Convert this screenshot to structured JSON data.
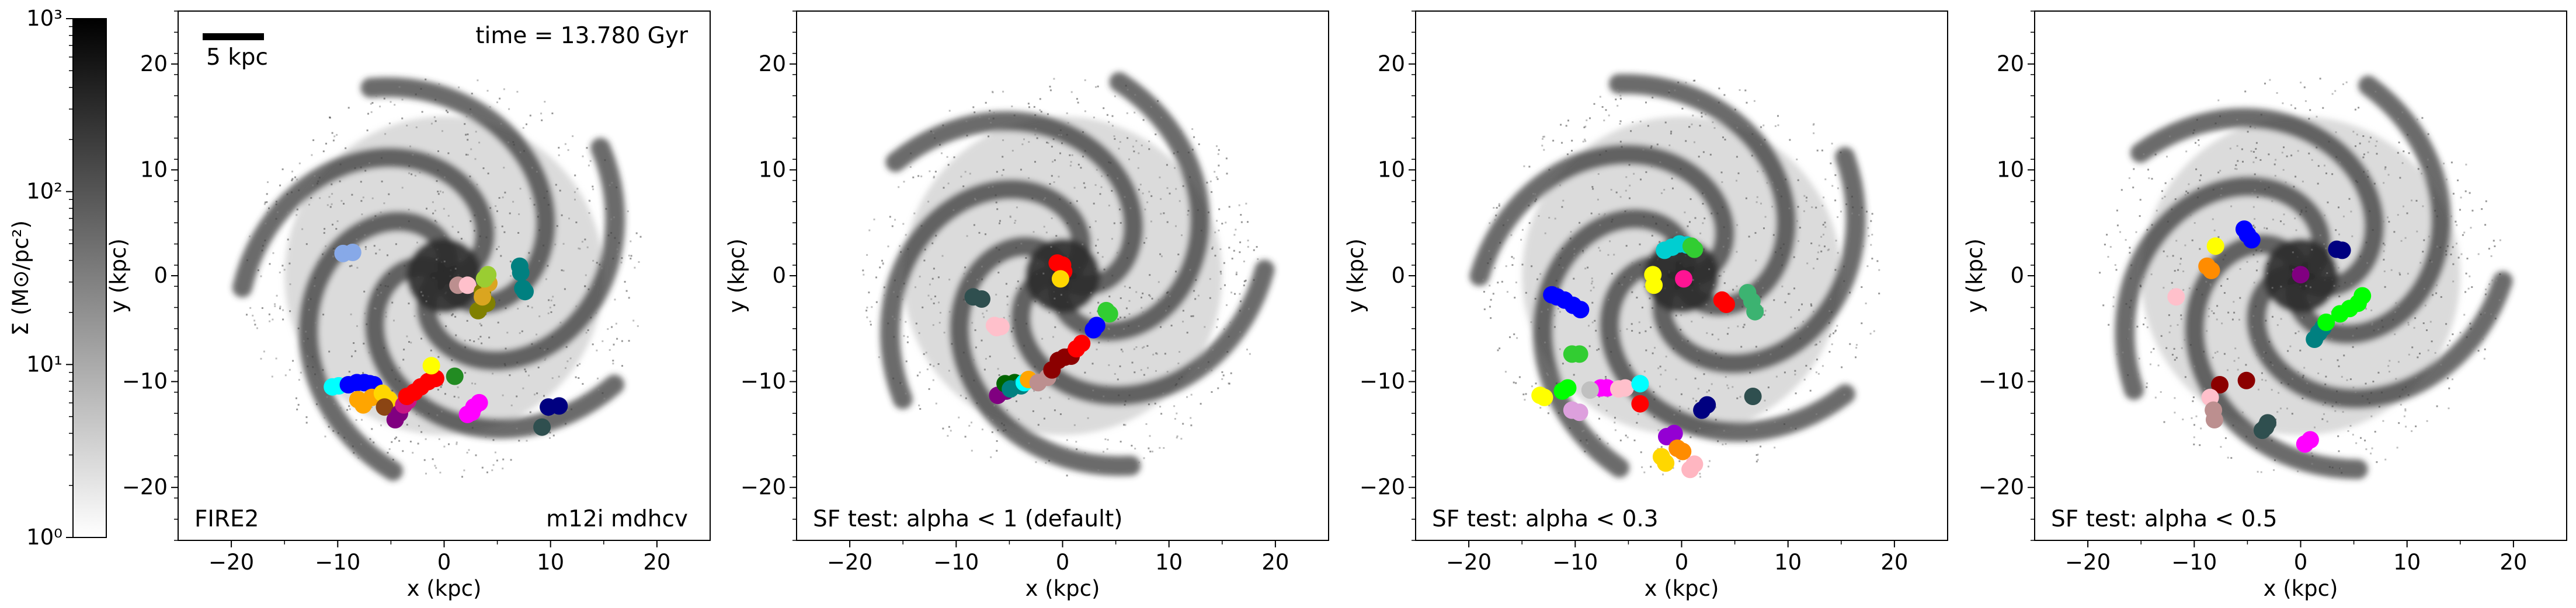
{
  "figure": {
    "time_label": "time = 13.780 Gyr",
    "scalebar_label": "5 kpc",
    "scalebar_length": 5,
    "colorbar": {
      "label": "Σ (M⊙/pc²)",
      "scale": "log",
      "range": [
        1,
        1000
      ],
      "tick_labels": [
        "10⁰",
        "10¹",
        "10²",
        "10³"
      ],
      "tick_values": [
        1,
        10,
        100,
        1000
      ],
      "colors": [
        "#ffffff",
        "#000000"
      ]
    }
  },
  "chart_data": [
    {
      "type": "scatter",
      "xlabel": "x (kpc)",
      "ylabel": "y (kpc)",
      "xlim": [
        -25,
        25
      ],
      "ylim": [
        -25,
        25
      ],
      "xticks": [
        -20,
        -10,
        0,
        10,
        20
      ],
      "yticks": [
        -20,
        -10,
        0,
        10,
        20
      ],
      "tick_labels_x": [
        "−20",
        "−10",
        "0",
        "10",
        "20"
      ],
      "tick_labels_y": [
        "−20",
        "−10",
        "0",
        "10",
        "20"
      ],
      "annotation_left": "FIRE2",
      "annotation_right": "m12i mdhcv",
      "background": "gas surface density map (spiral galaxy)",
      "grid": false,
      "clusters": [
        {
          "color": "#87a9e8",
          "points": [
            [
              -9.5,
              2.1
            ],
            [
              -8.6,
              2.2
            ]
          ]
        },
        {
          "color": "#00ffff",
          "points": [
            [
              -10.5,
              -10.5
            ],
            [
              -9.9,
              -10.4
            ]
          ]
        },
        {
          "color": "#0000ff",
          "points": [
            [
              -9,
              -10.3
            ],
            [
              -8.2,
              -10.1
            ],
            [
              -7.5,
              -10.1
            ],
            [
              -7,
              -10.2
            ],
            [
              -6.6,
              -10.3
            ]
          ]
        },
        {
          "color": "#ffa500",
          "points": [
            [
              -8.1,
              -11.7
            ],
            [
              -7.6,
              -12.2
            ],
            [
              -6.8,
              -11.5
            ]
          ]
        },
        {
          "color": "#ffd700",
          "points": [
            [
              -5.8,
              -11.1
            ],
            [
              -5.2,
              -11.7
            ]
          ]
        },
        {
          "color": "#8b4513",
          "points": [
            [
              -5.6,
              -12.4
            ]
          ]
        },
        {
          "color": "#800080",
          "points": [
            [
              -4.6,
              -13.6
            ],
            [
              -4.2,
              -13.0
            ]
          ]
        },
        {
          "color": "#c71585",
          "points": [
            [
              -3.8,
              -12.2
            ],
            [
              -3.4,
              -11.8
            ]
          ]
        },
        {
          "color": "#ff0000",
          "points": [
            [
              -3.5,
              -11.4
            ],
            [
              -2.8,
              -11.0
            ],
            [
              -2.2,
              -10.5
            ],
            [
              -1.5,
              -10.0
            ],
            [
              -0.8,
              -9.7
            ]
          ]
        },
        {
          "color": "#ffff00",
          "points": [
            [
              -1.2,
              -8.5
            ]
          ]
        },
        {
          "color": "#ff00ff",
          "points": [
            [
              2.2,
              -13.1
            ],
            [
              2.8,
              -12.4
            ],
            [
              3.3,
              -12.0
            ],
            [
              2.6,
              -12.9
            ]
          ]
        },
        {
          "color": "#228b22",
          "points": [
            [
              1,
              -9.5
            ]
          ]
        },
        {
          "color": "#000080",
          "points": [
            [
              9.8,
              -12.4
            ],
            [
              10.8,
              -12.3
            ]
          ]
        },
        {
          "color": "#2f4f4f",
          "points": [
            [
              9.2,
              -14.3
            ]
          ]
        },
        {
          "color": "#bc8f8f",
          "points": [
            [
              1.3,
              -0.9
            ]
          ]
        },
        {
          "color": "#ffc0cb",
          "points": [
            [
              2.2,
              -0.9
            ]
          ]
        },
        {
          "color": "#808000",
          "points": [
            [
              3.6,
              -1.5
            ],
            [
              3.2,
              -3.3
            ],
            [
              4,
              -2.6
            ]
          ]
        },
        {
          "color": "#daa520",
          "points": [
            [
              3.6,
              -2.0
            ],
            [
              4.2,
              -0.7
            ]
          ]
        },
        {
          "color": "#9acd32",
          "points": [
            [
              4.1,
              0.1
            ],
            [
              3.8,
              -0.3
            ]
          ]
        },
        {
          "color": "#008080",
          "points": [
            [
              7.1,
              0.9
            ],
            [
              7.2,
              0.3
            ],
            [
              7.4,
              -1.2
            ],
            [
              7.6,
              -1.5
            ]
          ]
        }
      ]
    },
    {
      "type": "scatter",
      "xlabel": "x (kpc)",
      "ylabel": "y (kpc)",
      "xlim": [
        -25,
        25
      ],
      "ylim": [
        -25,
        25
      ],
      "xticks": [
        -20,
        -10,
        0,
        10,
        20
      ],
      "yticks": [
        -20,
        -10,
        0,
        10,
        20
      ],
      "tick_labels_x": [
        "−20",
        "−10",
        "0",
        "10",
        "20"
      ],
      "tick_labels_y": [
        "−20",
        "−10",
        "0",
        "10",
        "20"
      ],
      "annotation_left": "SF test: alpha < 1 (default)",
      "annotation_right": "",
      "background": "gas surface density map (spiral galaxy)",
      "grid": false,
      "clusters": [
        {
          "color": "#2f4f4f",
          "points": [
            [
              -8.4,
              -2.0
            ],
            [
              -7.6,
              -2.2
            ]
          ]
        },
        {
          "color": "#ffc0cb",
          "points": [
            [
              -6.4,
              -4.7
            ],
            [
              -6.2,
              -4.9
            ],
            [
              -5.8,
              -4.8
            ]
          ]
        },
        {
          "color": "#800080",
          "points": [
            [
              -6.1,
              -11.3
            ],
            [
              -5.3,
              -10.9
            ]
          ]
        },
        {
          "color": "#006400",
          "points": [
            [
              -5.4,
              -10.2
            ],
            [
              -4.5,
              -10.1
            ]
          ]
        },
        {
          "color": "#008080",
          "points": [
            [
              -4.9,
              -10.7
            ],
            [
              -3.9,
              -10.4
            ]
          ]
        },
        {
          "color": "#00ffff",
          "points": [
            [
              -3.6,
              -10.1
            ]
          ]
        },
        {
          "color": "#ffa500",
          "points": [
            [
              -3.2,
              -9.8
            ]
          ]
        },
        {
          "color": "#bc8f8f",
          "points": [
            [
              -2.3,
              -10.1
            ],
            [
              -1.4,
              -9.6
            ]
          ]
        },
        {
          "color": "#8b0000",
          "points": [
            [
              -1.0,
              -8.9
            ],
            [
              -0.4,
              -8.0
            ],
            [
              0.2,
              -7.7
            ],
            [
              0.8,
              -7.6
            ]
          ]
        },
        {
          "color": "#ff0000",
          "points": [
            [
              -0.5,
              1.2
            ],
            [
              0,
              1.0
            ],
            [
              0.1,
              0.4
            ]
          ]
        },
        {
          "color": "#ffd700",
          "points": [
            [
              -0.2,
              -0.3
            ]
          ]
        },
        {
          "color": "#ff0000",
          "points": [
            [
              1.3,
              -6.9
            ],
            [
              1.8,
              -6.4
            ]
          ]
        },
        {
          "color": "#0000ff",
          "points": [
            [
              2.9,
              -5.1
            ],
            [
              3.2,
              -4.7
            ]
          ]
        },
        {
          "color": "#32cd32",
          "points": [
            [
              4.1,
              -3.3
            ],
            [
              4.4,
              -3.6
            ]
          ]
        }
      ]
    },
    {
      "type": "scatter",
      "xlabel": "x (kpc)",
      "ylabel": "y (kpc)",
      "xlim": [
        -25,
        25
      ],
      "ylim": [
        -25,
        25
      ],
      "xticks": [
        -20,
        -10,
        0,
        10,
        20
      ],
      "yticks": [
        -20,
        -10,
        0,
        10,
        20
      ],
      "tick_labels_x": [
        "−20",
        "−10",
        "0",
        "10",
        "20"
      ],
      "tick_labels_y": [
        "−20",
        "−10",
        "0",
        "10",
        "20"
      ],
      "annotation_left": "SF test: alpha < 0.3",
      "annotation_right": "",
      "background": "gas surface density map (spiral galaxy)",
      "grid": false,
      "clusters": [
        {
          "color": "#0000ff",
          "points": [
            [
              -12.2,
              -1.8
            ],
            [
              -11.7,
              -2.0
            ],
            [
              -11.0,
              -2.3
            ],
            [
              -10.2,
              -2.8
            ],
            [
              -9.5,
              -3.2
            ]
          ]
        },
        {
          "color": "#32cd32",
          "points": [
            [
              -10.3,
              -7.4
            ],
            [
              -9.6,
              -7.4
            ]
          ]
        },
        {
          "color": "#00ff00",
          "points": [
            [
              -11.2,
              -10.9
            ],
            [
              -10.7,
              -10.6
            ]
          ]
        },
        {
          "color": "#ffff00",
          "points": [
            [
              -13.3,
              -11.3
            ],
            [
              -12.9,
              -11.5
            ]
          ]
        },
        {
          "color": "#dda0dd",
          "points": [
            [
              -10.3,
              -12.7
            ],
            [
              -9.6,
              -12.9
            ]
          ]
        },
        {
          "color": "#ff00ff",
          "points": [
            [
              -7.6,
              -10.6
            ],
            [
              -7.0,
              -10.6
            ]
          ]
        },
        {
          "color": "#c0c0c0",
          "points": [
            [
              -8.6,
              -10.8
            ]
          ]
        },
        {
          "color": "#ffc0cb",
          "points": [
            [
              -5.9,
              -10.7
            ],
            [
              -5.3,
              -10.6
            ]
          ]
        },
        {
          "color": "#00ffff",
          "points": [
            [
              -3.9,
              -10.2
            ]
          ]
        },
        {
          "color": "#ffff00",
          "points": [
            [
              -2.7,
              0.1
            ],
            [
              -2.6,
              -0.9
            ]
          ]
        },
        {
          "color": "#00ced1",
          "points": [
            [
              -1.6,
              2.4
            ],
            [
              -0.9,
              2.7
            ],
            [
              -0.2,
              3.0
            ],
            [
              0.5,
              2.9
            ]
          ]
        },
        {
          "color": "#32cd32",
          "points": [
            [
              0.9,
              2.8
            ],
            [
              1.2,
              2.5
            ]
          ]
        },
        {
          "color": "#ff1493",
          "points": [
            [
              0.2,
              -0.3
            ]
          ]
        },
        {
          "color": "#ff0000",
          "points": [
            [
              3.8,
              -2.3
            ],
            [
              4.2,
              -2.7
            ]
          ]
        },
        {
          "color": "#3cb371",
          "points": [
            [
              6.2,
              -1.6
            ],
            [
              6.6,
              -2.4
            ],
            [
              6.9,
              -3.4
            ]
          ]
        },
        {
          "color": "#ff0000",
          "points": [
            [
              -3.9,
              -12.1
            ]
          ]
        },
        {
          "color": "#000080",
          "points": [
            [
              1.9,
              -12.7
            ],
            [
              2.4,
              -12.2
            ]
          ]
        },
        {
          "color": "#2f4f4f",
          "points": [
            [
              6.7,
              -11.4
            ]
          ]
        },
        {
          "color": "#9400d3",
          "points": [
            [
              -1.4,
              -15.2
            ],
            [
              -0.7,
              -14.9
            ]
          ]
        },
        {
          "color": "#ff8c00",
          "points": [
            [
              -0.4,
              -16.3
            ],
            [
              0.1,
              -16.6
            ]
          ]
        },
        {
          "color": "#ffd700",
          "points": [
            [
              -1.9,
              -17.1
            ],
            [
              -1.5,
              -17.7
            ]
          ]
        },
        {
          "color": "#ffb6c1",
          "points": [
            [
              1.2,
              -17.8
            ],
            [
              0.8,
              -18.3
            ]
          ]
        }
      ]
    },
    {
      "type": "scatter",
      "xlabel": "x (kpc)",
      "ylabel": "y (kpc)",
      "xlim": [
        -25,
        25
      ],
      "ylim": [
        -25,
        25
      ],
      "xticks": [
        -20,
        -10,
        0,
        10,
        20
      ],
      "yticks": [
        -20,
        -10,
        0,
        10,
        20
      ],
      "tick_labels_x": [
        "−20",
        "−10",
        "0",
        "10",
        "20"
      ],
      "tick_labels_y": [
        "−20",
        "−10",
        "0",
        "10",
        "20"
      ],
      "annotation_left": "SF test: alpha < 0.5",
      "annotation_right": "",
      "background": "gas surface density map (spiral galaxy)",
      "grid": false,
      "clusters": [
        {
          "color": "#ffff00",
          "points": [
            [
              -8.0,
              2.8
            ]
          ]
        },
        {
          "color": "#ff8c00",
          "points": [
            [
              -8.8,
              0.9
            ],
            [
              -8.4,
              0.5
            ]
          ]
        },
        {
          "color": "#0000ff",
          "points": [
            [
              -5.3,
              4.4
            ],
            [
              -5.0,
              3.9
            ],
            [
              -4.6,
              3.4
            ]
          ]
        },
        {
          "color": "#000080",
          "points": [
            [
              3.4,
              2.5
            ],
            [
              3.9,
              2.4
            ]
          ]
        },
        {
          "color": "#800080",
          "points": [
            [
              0,
              0.1
            ]
          ]
        },
        {
          "color": "#ffc0cb",
          "points": [
            [
              -11.7,
              -2.0
            ]
          ]
        },
        {
          "color": "#008080",
          "points": [
            [
              1.3,
              -6.0
            ],
            [
              1.7,
              -5.4
            ],
            [
              2.1,
              -4.9
            ]
          ]
        },
        {
          "color": "#00ff00",
          "points": [
            [
              2.4,
              -4.4
            ],
            [
              3.7,
              -3.6
            ],
            [
              4.6,
              -3.1
            ],
            [
              5.4,
              -2.6
            ],
            [
              5.8,
              -1.9
            ]
          ]
        },
        {
          "color": "#8b0000",
          "points": [
            [
              -7.6,
              -10.3
            ],
            [
              -5.1,
              -9.9
            ]
          ]
        },
        {
          "color": "#ffc0cb",
          "points": [
            [
              -8.5,
              -11.5
            ]
          ]
        },
        {
          "color": "#bc8f8f",
          "points": [
            [
              -8.2,
              -12.7
            ],
            [
              -8.1,
              -13.6
            ]
          ]
        },
        {
          "color": "#2f4f4f",
          "points": [
            [
              -3.6,
              -14.6
            ],
            [
              -3.1,
              -13.9
            ],
            [
              -3.3,
              -14.3
            ]
          ]
        },
        {
          "color": "#ff00ff",
          "points": [
            [
              0.4,
              -15.9
            ],
            [
              0.9,
              -15.5
            ]
          ]
        }
      ]
    }
  ]
}
